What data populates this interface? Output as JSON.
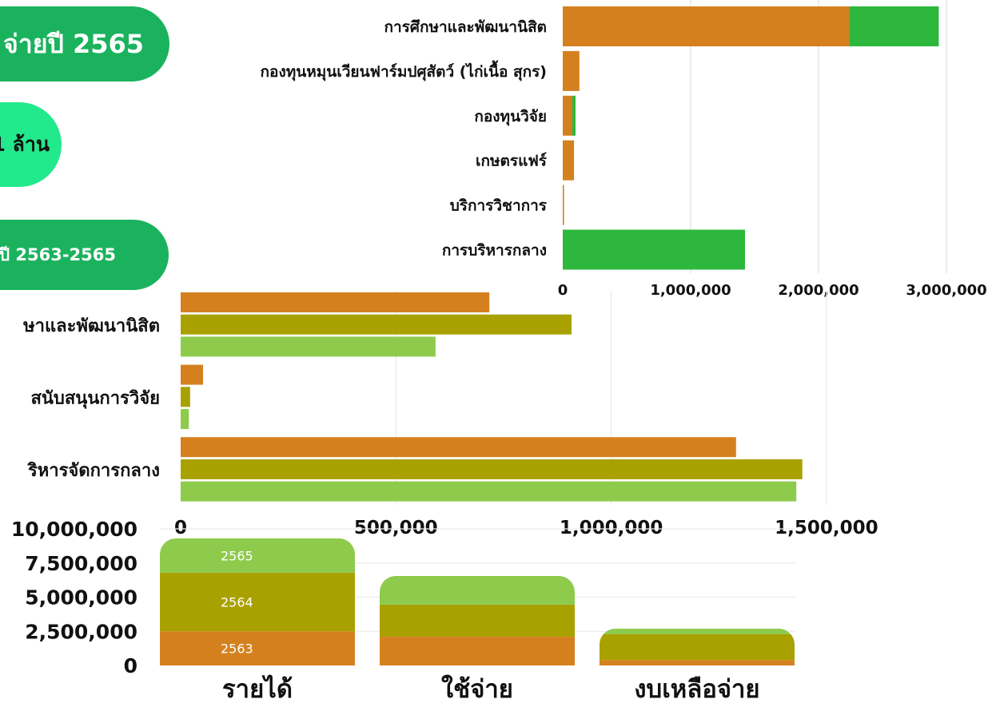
{
  "pills": [
    {
      "text": "จ่ายปี 2565",
      "color": "#1BB25E",
      "text_color": "#FFFFFF"
    },
    {
      "text": "1 ล้าน",
      "color": "#22E98B",
      "text_color": "#111111"
    },
    {
      "text": "ปี 2563-2565",
      "color": "#1BB25E",
      "text_color": "#FFFFFF"
    }
  ],
  "chart_data": [
    {
      "type": "bar",
      "orientation": "horizontal",
      "stacked": true,
      "categories": [
        "การศึกษาและพัฒนานิสิต",
        "กองทุนหมุนเวียนฟาร์มปศุสัตว์ (ไก่เนื้อ สุกร)",
        "กองทุนวิจัย",
        "เกษตรแฟร์",
        "บริการวิชาการ",
        "การบริหารกลาง"
      ],
      "series": [
        {
          "color": "#D5801F",
          "values": [
            2240000,
            130000,
            75000,
            88000,
            10000,
            0
          ]
        },
        {
          "color": "#2DB83D",
          "values": [
            700000,
            0,
            25000,
            0,
            0,
            1425000
          ]
        }
      ],
      "xlim": [
        0,
        3000000
      ],
      "xticks": [
        0,
        1000000,
        2000000,
        3000000
      ],
      "xtick_labels": [
        "0",
        "1,000,000",
        "2,000,000",
        "3,000,000"
      ],
      "grid": true
    },
    {
      "type": "bar",
      "orientation": "horizontal",
      "grouped": true,
      "categories": [
        "ษาและพัฒนานิสิต",
        "สนับสนุนการวิจัย",
        "ริหารจัดการกลาง"
      ],
      "series": [
        {
          "color": "#D5801F",
          "values": [
            717000,
            52000,
            1290000
          ]
        },
        {
          "color": "#A9A100",
          "values": [
            908000,
            22000,
            1444000
          ]
        },
        {
          "color": "#8ECB4C",
          "values": [
            592000,
            19000,
            1430000
          ]
        }
      ],
      "xlim": [
        0,
        1500000
      ],
      "xticks": [
        0,
        500000,
        1000000,
        1500000
      ],
      "xtick_labels": [
        "0",
        "500,000",
        "1,000,000",
        "1,500,000"
      ],
      "grid": true
    },
    {
      "type": "bar",
      "orientation": "vertical",
      "stacked": true,
      "categories": [
        "รายได้",
        "ใช้จ่าย",
        "งบเหลือจ่าย"
      ],
      "series": [
        {
          "name": "2563",
          "color": "#D5801F",
          "values": [
            2500000,
            2100000,
            400000
          ]
        },
        {
          "name": "2564",
          "color": "#A9A100",
          "values": [
            4300000,
            2350000,
            1900000
          ]
        },
        {
          "name": "2565",
          "color": "#8ECB4C",
          "values": [
            2500000,
            2100000,
            400000
          ]
        }
      ],
      "ylim": [
        0,
        10000000
      ],
      "yticks": [
        10000000,
        7500000,
        5000000,
        2500000,
        0
      ],
      "ytick_labels": [
        "10,000,000",
        "7,500,000",
        "5,000,000",
        "2,500,000",
        "0"
      ],
      "grid": true
    }
  ]
}
